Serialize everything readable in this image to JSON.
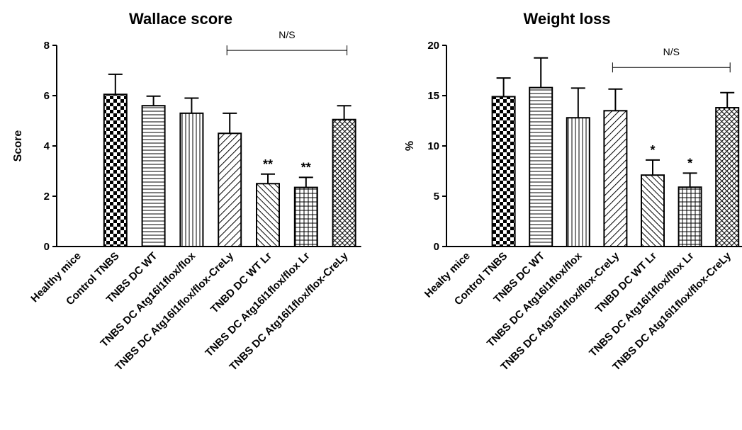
{
  "chart_data": [
    {
      "type": "bar",
      "title": "Wallace score",
      "ylabel": "Score",
      "xlabel": "",
      "ylim": [
        0,
        8
      ],
      "yticks": [
        0,
        2,
        4,
        6,
        8
      ],
      "categories": [
        "Healthy mice",
        "Control TNBS",
        "TNBS DC WT",
        "TNBS DC Atg16l1flox/flox",
        "TNBS DC Atg16l1flox/flox-CreLy",
        "TNBD DC WT Lr",
        "TNBS DC Atg16l1flox/flox Lr",
        "TNBS DC Atg16l1flox/flox-CreLy"
      ],
      "values": [
        0,
        6.05,
        5.6,
        5.3,
        4.5,
        2.5,
        2.35,
        5.05
      ],
      "errors": [
        0,
        0.8,
        0.38,
        0.6,
        0.8,
        0.38,
        0.4,
        0.55
      ],
      "patterns": [
        "none",
        "checker",
        "hlines",
        "vlines",
        "diag-right",
        "diag-left",
        "grid",
        "crosshatch"
      ],
      "significance": [
        "",
        "",
        "",
        "",
        "",
        "**",
        "**",
        ""
      ],
      "bracket": {
        "from": 4,
        "to": 7,
        "label": "N/S",
        "y": 7.8
      },
      "grid": false,
      "legend": "none"
    },
    {
      "type": "bar",
      "title": "Weight loss",
      "ylabel": "%",
      "xlabel": "",
      "ylim": [
        0,
        20
      ],
      "yticks": [
        0,
        5,
        10,
        15,
        20
      ],
      "categories": [
        "Healty mice",
        "Control TNBS",
        "TNBS DC WT",
        "TNBS DC Atg16l1flox/flox",
        "TNBS DC Atg16l1flox/flox-CreLy",
        "TNBD DC WT Lr",
        "TNBS DC Atg16l1flox/flox Lr",
        "TNBS DC Atg16l1flox/flox-CreLy"
      ],
      "values": [
        0,
        14.9,
        15.8,
        12.8,
        13.5,
        7.1,
        5.9,
        13.8
      ],
      "errors": [
        0,
        1.85,
        2.95,
        2.95,
        2.15,
        1.5,
        1.4,
        1.5
      ],
      "patterns": [
        "none",
        "checker",
        "hlines",
        "vlines",
        "diag-right",
        "diag-left",
        "grid",
        "crosshatch"
      ],
      "significance": [
        "",
        "",
        "",
        "",
        "",
        "*",
        "*",
        ""
      ],
      "bracket": {
        "from": 4,
        "to": 7,
        "label": "N/S",
        "y": 17.8
      },
      "grid": false,
      "legend": "none"
    }
  ]
}
